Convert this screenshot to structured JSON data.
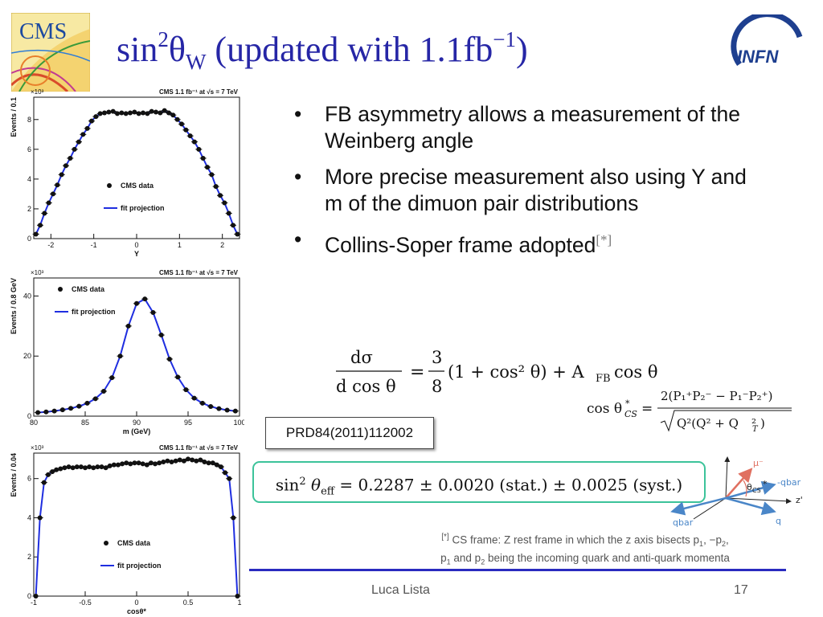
{
  "slide": {
    "title_main": "sin",
    "title_sup1": "2",
    "title_theta": "θ",
    "title_sub": "W",
    "title_rest": " (updated with 1.1fb",
    "title_sup2": "−1",
    "title_close": ")"
  },
  "logos": {
    "cms": "CMS",
    "infn": "INFN"
  },
  "bullets": [
    "FB asymmetry allows a measurement of the Weinberg angle",
    "More precise measurement also using Y and m of the dimuon pair distributions",
    "Collins-Soper frame adopted"
  ],
  "bullet_ref": "[*]",
  "prd_box": "PRD84(2011)112002",
  "result": {
    "lhs": "sin",
    "sup": "2",
    "theta": "θ",
    "sub": "eff",
    "rhs": " = 0.2287 ± 0.0020 (stat.) ± 0.0025 (syst.)"
  },
  "diagram": {
    "mu": "μ⁻",
    "theta_cs": "θ",
    "theta_cs_sub": "CS",
    "theta_star": "*",
    "neg_qbar": "-qbar",
    "zprime": "z'",
    "qbar": "qbar",
    "q": "q"
  },
  "footnote": {
    "mark": "[*]",
    "line1": " CS frame: Z rest frame in which the z axis bisects p",
    "line1_b": ", −p",
    "line1_c": ",",
    "sub1": "1",
    "sub2": "2",
    "line2_a": "p",
    "line2_b": " and p",
    "line2_c": " being the incoming quark and anti-quark momenta"
  },
  "footer": {
    "author": "Luca Lista",
    "page": "17"
  },
  "colors": {
    "title": "#2626a6",
    "fit": "#1f2ee0",
    "result_border": "#3cc39a",
    "footer_line": "#2a2bbf"
  },
  "chart_data": [
    {
      "type": "scatter",
      "title": "CMS 1.1 fb⁻¹ at √s = 7 TeV",
      "xlabel": "Y",
      "ylabel": "Events / 0.1",
      "exponent_label": "×10³",
      "xlim": [
        -2.4,
        2.4
      ],
      "ylim": [
        0,
        9.5
      ],
      "xticks": [
        -2,
        -1,
        0,
        1,
        2
      ],
      "yticks": [
        0,
        2,
        4,
        6,
        8
      ],
      "legend": [
        "CMS data",
        "fit projection"
      ],
      "legend_position": "center-left",
      "series": [
        {
          "name": "CMS data",
          "x": [
            -2.35,
            -2.25,
            -2.15,
            -2.05,
            -1.95,
            -1.85,
            -1.75,
            -1.65,
            -1.55,
            -1.45,
            -1.35,
            -1.25,
            -1.15,
            -1.05,
            -0.95,
            -0.85,
            -0.75,
            -0.65,
            -0.55,
            -0.45,
            -0.35,
            -0.25,
            -0.15,
            -0.05,
            0.05,
            0.15,
            0.25,
            0.35,
            0.45,
            0.55,
            0.65,
            0.75,
            0.85,
            0.95,
            1.05,
            1.15,
            1.25,
            1.35,
            1.45,
            1.55,
            1.65,
            1.75,
            1.85,
            1.95,
            2.05,
            2.15,
            2.25,
            2.35
          ],
          "y": [
            0.3,
            0.9,
            1.7,
            2.4,
            3.0,
            3.6,
            4.3,
            4.9,
            5.4,
            6.0,
            6.5,
            7.0,
            7.4,
            7.9,
            8.2,
            8.4,
            8.45,
            8.5,
            8.55,
            8.4,
            8.45,
            8.4,
            8.45,
            8.5,
            8.4,
            8.45,
            8.4,
            8.55,
            8.5,
            8.45,
            8.6,
            8.45,
            8.3,
            8.0,
            7.7,
            7.3,
            6.9,
            6.5,
            6.0,
            5.4,
            4.8,
            4.3,
            3.5,
            2.9,
            2.4,
            1.7,
            0.9,
            0.3
          ]
        },
        {
          "name": "fit projection",
          "style": "line"
        }
      ]
    },
    {
      "type": "scatter",
      "title": "CMS 1.1 fb⁻¹ at √s = 7 TeV",
      "xlabel": "m (GeV)",
      "ylabel": "Events / 0.8 GeV",
      "exponent_label": "×10³",
      "xlim": [
        80,
        100
      ],
      "ylim": [
        0,
        46
      ],
      "xticks": [
        80,
        85,
        90,
        95,
        100
      ],
      "yticks": [
        0,
        20,
        40
      ],
      "legend": [
        "CMS data",
        "fit projection"
      ],
      "legend_position": "top-left",
      "series": [
        {
          "name": "CMS data",
          "x": [
            80.4,
            81.2,
            82.0,
            82.8,
            83.6,
            84.4,
            85.2,
            86.0,
            86.8,
            87.6,
            88.4,
            89.2,
            90.0,
            90.8,
            91.6,
            92.4,
            93.2,
            94.0,
            94.8,
            95.6,
            96.4,
            97.2,
            98.0,
            98.8,
            99.6
          ],
          "y": [
            1.2,
            1.4,
            1.7,
            2.1,
            2.6,
            3.3,
            4.3,
            5.8,
            8.3,
            12.8,
            20.0,
            30.0,
            37.5,
            39.0,
            34.5,
            27.0,
            19.0,
            13.0,
            8.8,
            6.0,
            4.3,
            3.2,
            2.5,
            2.0,
            1.7
          ]
        },
        {
          "name": "fit projection",
          "style": "line"
        }
      ]
    },
    {
      "type": "scatter",
      "title": "CMS 1.1 fb⁻¹ at √s = 7 TeV",
      "xlabel": "cosθ*",
      "ylabel": "Events / 0.04",
      "exponent_label": "×10³",
      "xlim": [
        -1,
        1
      ],
      "ylim": [
        0,
        7.3
      ],
      "xticks": [
        -1,
        -0.5,
        0,
        0.5,
        1
      ],
      "yticks": [
        0,
        2,
        4,
        6
      ],
      "legend": [
        "CMS data",
        "fit projection"
      ],
      "legend_position": "center",
      "series": [
        {
          "name": "CMS data",
          "x": [
            -0.98,
            -0.94,
            -0.9,
            -0.86,
            -0.82,
            -0.78,
            -0.74,
            -0.7,
            -0.66,
            -0.62,
            -0.58,
            -0.54,
            -0.5,
            -0.46,
            -0.42,
            -0.38,
            -0.34,
            -0.3,
            -0.26,
            -0.22,
            -0.18,
            -0.14,
            -0.1,
            -0.06,
            -0.02,
            0.02,
            0.06,
            0.1,
            0.14,
            0.18,
            0.22,
            0.26,
            0.3,
            0.34,
            0.38,
            0.42,
            0.46,
            0.5,
            0.54,
            0.58,
            0.62,
            0.66,
            0.7,
            0.74,
            0.78,
            0.82,
            0.86,
            0.9,
            0.94,
            0.98
          ],
          "y": [
            0.0,
            4.0,
            5.8,
            6.2,
            6.35,
            6.45,
            6.5,
            6.55,
            6.6,
            6.55,
            6.6,
            6.6,
            6.55,
            6.6,
            6.55,
            6.6,
            6.6,
            6.55,
            6.65,
            6.7,
            6.7,
            6.75,
            6.8,
            6.75,
            6.8,
            6.8,
            6.75,
            6.7,
            6.8,
            6.75,
            6.8,
            6.85,
            6.9,
            6.85,
            6.9,
            6.95,
            6.9,
            7.0,
            6.95,
            6.9,
            6.95,
            6.85,
            6.8,
            6.8,
            6.7,
            6.6,
            6.3,
            6.0,
            4.0,
            0.0
          ]
        },
        {
          "name": "fit projection",
          "style": "line"
        }
      ]
    }
  ]
}
